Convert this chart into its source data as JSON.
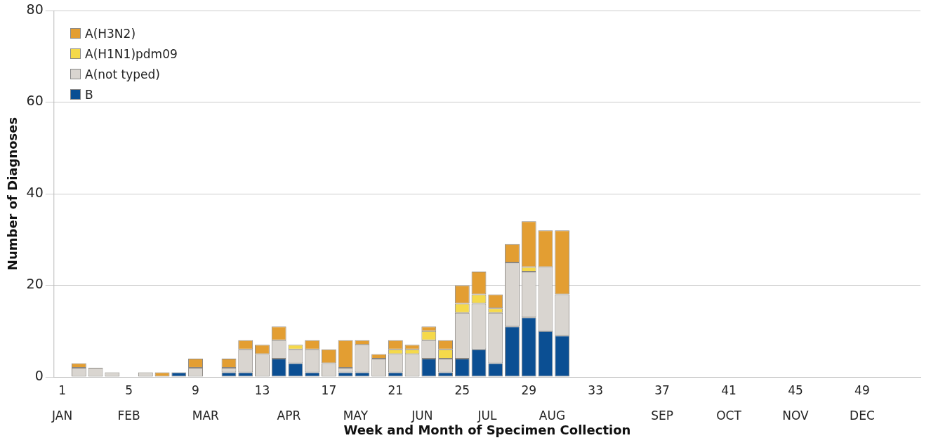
{
  "chart_data": {
    "type": "bar",
    "stacked": true,
    "xlabel": "Week and Month of Specimen Collection",
    "ylabel": "Number of Diagnoses",
    "categories": [
      "1",
      null,
      null,
      null,
      "5",
      null,
      null,
      null,
      "9",
      null,
      null,
      null,
      "13",
      null,
      null,
      null,
      "17",
      null,
      null,
      null,
      "21",
      null,
      null,
      null,
      "25",
      null,
      null,
      null,
      "29",
      null,
      null,
      null,
      "33",
      null,
      null,
      null,
      "37",
      null,
      null,
      null,
      "41",
      null,
      null,
      null,
      "45",
      null,
      null,
      null,
      "49",
      null,
      null,
      null
    ],
    "annotations": [
      "JAN",
      "FEB",
      "MAR",
      "APR",
      "MAY",
      "JUN",
      "JUL",
      "AUG",
      "SEP",
      "OCT",
      "NOV",
      "DEC"
    ],
    "series": [
      {
        "name": "B",
        "color": "#0b4f93",
        "values": [
          null,
          null,
          null,
          null,
          null,
          null,
          null,
          1,
          null,
          null,
          1,
          1,
          null,
          4,
          3,
          1,
          null,
          1,
          1,
          null,
          1,
          null,
          4,
          1,
          4,
          6,
          3,
          11,
          13,
          10,
          9,
          null,
          null,
          null,
          null,
          null,
          null,
          null,
          null,
          null,
          null,
          null,
          null,
          null,
          null,
          null,
          null,
          null,
          null,
          null,
          null,
          null
        ]
      },
      {
        "name": "A(not typed)",
        "color": "#d9d5d0",
        "values": [
          null,
          2,
          2,
          1,
          null,
          1,
          null,
          null,
          2,
          null,
          1,
          5,
          5,
          4,
          3,
          5,
          3,
          1,
          6,
          4,
          4,
          5,
          4,
          3,
          10,
          10,
          11,
          14,
          10,
          14,
          9,
          null,
          null,
          null,
          null,
          null,
          null,
          null,
          null,
          null,
          null,
          null,
          null,
          null,
          null,
          null,
          null,
          null,
          null,
          null,
          null,
          null
        ]
      },
      {
        "name": "A(H1N1)pdm09",
        "color": "#f5d94a",
        "values": [
          null,
          null,
          null,
          null,
          null,
          null,
          null,
          null,
          null,
          null,
          null,
          null,
          null,
          null,
          1,
          null,
          null,
          null,
          null,
          null,
          1,
          1,
          2,
          2,
          2,
          2,
          1,
          null,
          1,
          null,
          null,
          null,
          null,
          null,
          null,
          null,
          null,
          null,
          null,
          null,
          null,
          null,
          null,
          null,
          null,
          null,
          null,
          null,
          null,
          null,
          null,
          null
        ]
      },
      {
        "name": "A(H3N2)",
        "color": "#e39e32",
        "values": [
          null,
          1,
          null,
          null,
          null,
          null,
          1,
          null,
          2,
          null,
          2,
          2,
          2,
          3,
          null,
          2,
          3,
          6,
          1,
          1,
          2,
          1,
          1,
          2,
          4,
          5,
          3,
          4,
          10,
          8,
          14,
          null,
          null,
          null,
          null,
          null,
          null,
          null,
          null,
          null,
          null,
          null,
          null,
          null,
          null,
          null,
          null,
          null,
          null,
          null,
          null,
          null
        ]
      }
    ],
    "ylim": [
      0,
      80
    ],
    "yticks": [
      0,
      20,
      40,
      60,
      80
    ],
    "grid": "y",
    "legend": "top left"
  }
}
